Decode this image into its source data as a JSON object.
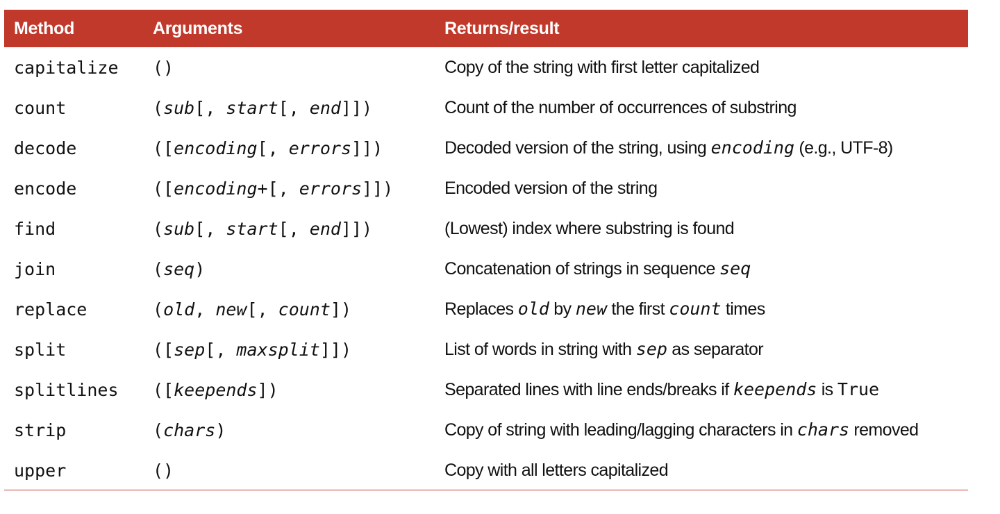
{
  "header": {
    "method": "Method",
    "arguments": "Arguments",
    "result": "Returns/result"
  },
  "colors": {
    "header_background": "#c0392b",
    "header_text": "#ffffff",
    "bottom_rule": "#c0392b"
  },
  "rows": [
    {
      "method": "capitalize",
      "args": [
        {
          "t": "()",
          "i": false
        }
      ],
      "result": [
        {
          "t": "Copy of the string with first letter capitalized"
        }
      ]
    },
    {
      "method": "count",
      "args": [
        {
          "t": "(",
          "i": false
        },
        {
          "t": "sub",
          "i": true
        },
        {
          "t": "[, ",
          "i": false
        },
        {
          "t": "start",
          "i": true
        },
        {
          "t": "[, ",
          "i": false
        },
        {
          "t": "end",
          "i": true
        },
        {
          "t": "]])",
          "i": false
        }
      ],
      "result": [
        {
          "t": "Count of the number of occurrences of substring"
        }
      ]
    },
    {
      "method": "decode",
      "args": [
        {
          "t": "([",
          "i": false
        },
        {
          "t": "encoding",
          "i": true
        },
        {
          "t": "[, ",
          "i": false
        },
        {
          "t": "errors",
          "i": true
        },
        {
          "t": "]])",
          "i": false
        }
      ],
      "result": [
        {
          "t": "Decoded version of the string, using "
        },
        {
          "t": "encoding",
          "code": true,
          "i": true
        },
        {
          "t": " (e.g., UTF-8)"
        }
      ]
    },
    {
      "method": "encode",
      "args": [
        {
          "t": "([",
          "i": false
        },
        {
          "t": "encoding",
          "i": true
        },
        {
          "t": "+[, ",
          "i": false
        },
        {
          "t": "errors",
          "i": true
        },
        {
          "t": "]])",
          "i": false
        }
      ],
      "result": [
        {
          "t": "Encoded version of the string"
        }
      ]
    },
    {
      "method": "find",
      "args": [
        {
          "t": "(",
          "i": false
        },
        {
          "t": "sub",
          "i": true
        },
        {
          "t": "[, ",
          "i": false
        },
        {
          "t": "start",
          "i": true
        },
        {
          "t": "[, ",
          "i": false
        },
        {
          "t": "end",
          "i": true
        },
        {
          "t": "]])",
          "i": false
        }
      ],
      "result": [
        {
          "t": "(Lowest) index where substring is found"
        }
      ]
    },
    {
      "method": "join",
      "args": [
        {
          "t": "(",
          "i": false
        },
        {
          "t": "seq",
          "i": true
        },
        {
          "t": ")",
          "i": false
        }
      ],
      "result": [
        {
          "t": "Concatenation of strings in sequence "
        },
        {
          "t": "seq",
          "code": true,
          "i": true
        }
      ]
    },
    {
      "method": "replace",
      "args": [
        {
          "t": "(",
          "i": false
        },
        {
          "t": "old",
          "i": true
        },
        {
          "t": ", ",
          "i": false
        },
        {
          "t": "new",
          "i": true
        },
        {
          "t": "[, ",
          "i": false
        },
        {
          "t": "count",
          "i": true
        },
        {
          "t": "])",
          "i": false
        }
      ],
      "result": [
        {
          "t": "Replaces "
        },
        {
          "t": "old",
          "code": true,
          "i": true
        },
        {
          "t": " by "
        },
        {
          "t": "new",
          "code": true,
          "i": true
        },
        {
          "t": " the first "
        },
        {
          "t": "count",
          "code": true,
          "i": true
        },
        {
          "t": " times"
        }
      ]
    },
    {
      "method": "split",
      "args": [
        {
          "t": "([",
          "i": false
        },
        {
          "t": "sep",
          "i": true
        },
        {
          "t": "[, ",
          "i": false
        },
        {
          "t": "maxsplit",
          "i": true
        },
        {
          "t": "]])",
          "i": false
        }
      ],
      "result": [
        {
          "t": "List of words in string with "
        },
        {
          "t": "sep",
          "code": true,
          "i": true
        },
        {
          "t": " as separator"
        }
      ]
    },
    {
      "method": "splitlines",
      "args": [
        {
          "t": "([",
          "i": false
        },
        {
          "t": "keepends",
          "i": true
        },
        {
          "t": "])",
          "i": false
        }
      ],
      "result": [
        {
          "t": "Separated lines with line ends/breaks if "
        },
        {
          "t": "keepends",
          "code": true,
          "i": true
        },
        {
          "t": " is "
        },
        {
          "t": "True",
          "code": true,
          "i": false
        }
      ]
    },
    {
      "method": "strip",
      "args": [
        {
          "t": "(",
          "i": false
        },
        {
          "t": "chars",
          "i": true
        },
        {
          "t": ")",
          "i": false
        }
      ],
      "result": [
        {
          "t": "Copy of string with leading/lagging characters in "
        },
        {
          "t": "chars",
          "code": true,
          "i": true
        },
        {
          "t": " removed"
        }
      ]
    },
    {
      "method": "upper",
      "args": [
        {
          "t": "()",
          "i": false
        }
      ],
      "result": [
        {
          "t": "Copy with all letters capitalized"
        }
      ]
    }
  ]
}
